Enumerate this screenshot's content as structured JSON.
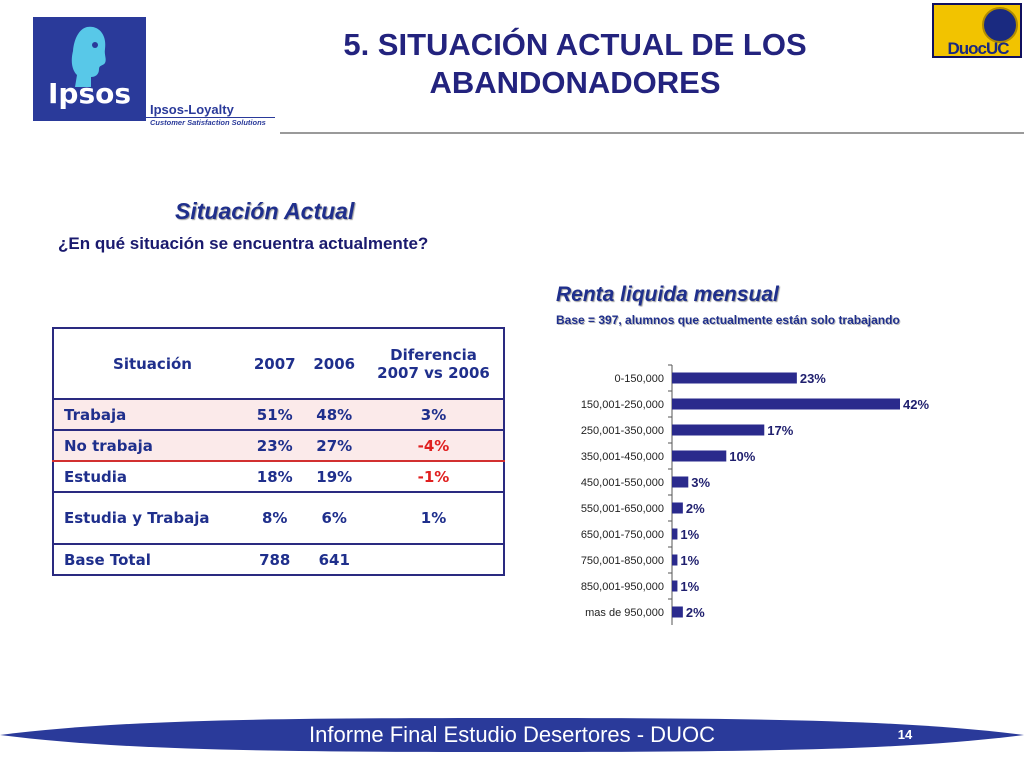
{
  "header": {
    "title_line1": "5. SITUACIÓN ACTUAL DE LOS",
    "title_line2": "ABANDONADORES",
    "logo_text": "Ipsos",
    "logo_sub": "Ipsos-Loyalty",
    "logo_tagline": "Customer Satisfaction Solutions",
    "partner_logo": "DuocUC"
  },
  "section": {
    "title": "Situación Actual",
    "question": "¿En qué situación se encuentra actualmente?"
  },
  "table": {
    "headers": [
      "Situación",
      "2007",
      "2006",
      "Diferencia 2007 vs 2006"
    ],
    "rows": [
      {
        "label": "Trabaja",
        "y2007": "51%",
        "y2006": "48%",
        "diff": "3%"
      },
      {
        "label": "No trabaja",
        "y2007": "23%",
        "y2006": "27%",
        "diff": "-4%"
      },
      {
        "label": "Estudia",
        "y2007": "18%",
        "y2006": "19%",
        "diff": "-1%"
      },
      {
        "label": "Estudia y Trabaja",
        "y2007": "8%",
        "y2006": "6%",
        "diff": "1%"
      },
      {
        "label": "Base Total",
        "y2007": "788",
        "y2006": "641",
        "diff": ""
      }
    ],
    "negative_color": "#e02020",
    "highlight_color": "#d23030"
  },
  "chart_data": {
    "type": "bar",
    "orientation": "horizontal",
    "title": "Renta liquida mensual",
    "subtitle": "Base = 397, alumnos que actualmente están solo trabajando",
    "categories": [
      "0-150,000",
      "150,001-250,000",
      "250,001-350,000",
      "350,001-450,000",
      "450,001-550,000",
      "550,001-650,000",
      "650,001-750,000",
      "750,001-850,000",
      "850,001-950,000",
      "mas de 950,000"
    ],
    "values": [
      23,
      42,
      17,
      10,
      3,
      2,
      1,
      1,
      1,
      2
    ],
    "value_labels": [
      "23%",
      "42%",
      "17%",
      "10%",
      "3%",
      "2%",
      "1%",
      "1%",
      "1%",
      "2%"
    ],
    "xlim": [
      0,
      42
    ],
    "bar_color": "#2a2a8c"
  },
  "footer": {
    "text": "Informe Final Estudio Desertores - DUOC",
    "page": "14"
  }
}
